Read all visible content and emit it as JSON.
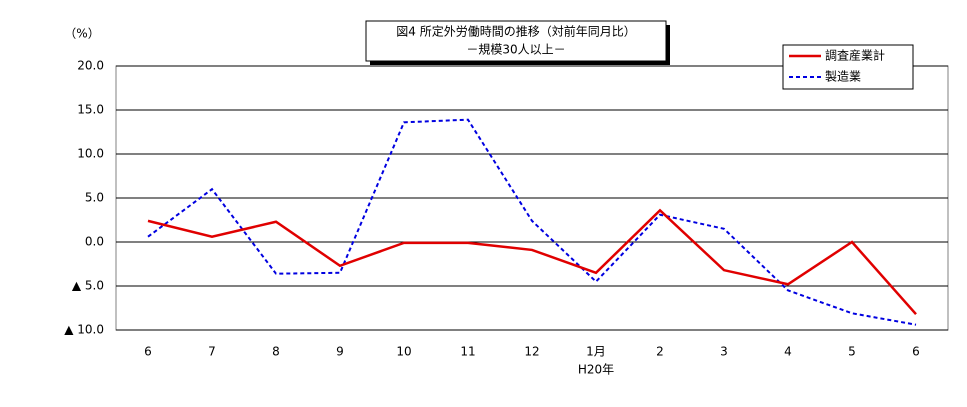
{
  "chart_data": {
    "type": "line",
    "title": "図4  所定外労働時間の推移（対前年同月比）",
    "subtitle": "－規模30人以上－",
    "y_label": "（%）",
    "x_label": "H20年",
    "categories": [
      "6",
      "7",
      "8",
      "9",
      "10",
      "11",
      "12",
      "1月",
      "2",
      "3",
      "4",
      "5",
      "6"
    ],
    "series": [
      {
        "name": "調査産業計",
        "color": "#e00000",
        "style": "solid",
        "values": [
          2.4,
          0.6,
          2.3,
          -2.7,
          -0.1,
          -0.1,
          -0.9,
          -3.5,
          3.6,
          -3.2,
          -4.8,
          0.0,
          -8.2
        ]
      },
      {
        "name": "製造業",
        "color": "#0000e0",
        "style": "dotted",
        "values": [
          0.6,
          6.0,
          -3.6,
          -3.5,
          13.6,
          13.9,
          2.4,
          -4.5,
          3.1,
          1.5,
          -5.5,
          -8.1,
          -9.4
        ]
      }
    ],
    "ylim": [
      -10,
      20
    ],
    "yticks": [
      {
        "value": 20,
        "label": "20.0"
      },
      {
        "value": 15,
        "label": "15.0"
      },
      {
        "value": 10,
        "label": "10.0"
      },
      {
        "value": 5,
        "label": "5.0"
      },
      {
        "value": 0,
        "label": "0.0"
      },
      {
        "value": -5,
        "label": "▲ 5.0"
      },
      {
        "value": -10,
        "label": "▲ 10.0"
      }
    ],
    "grid": true,
    "legend": "top right"
  }
}
